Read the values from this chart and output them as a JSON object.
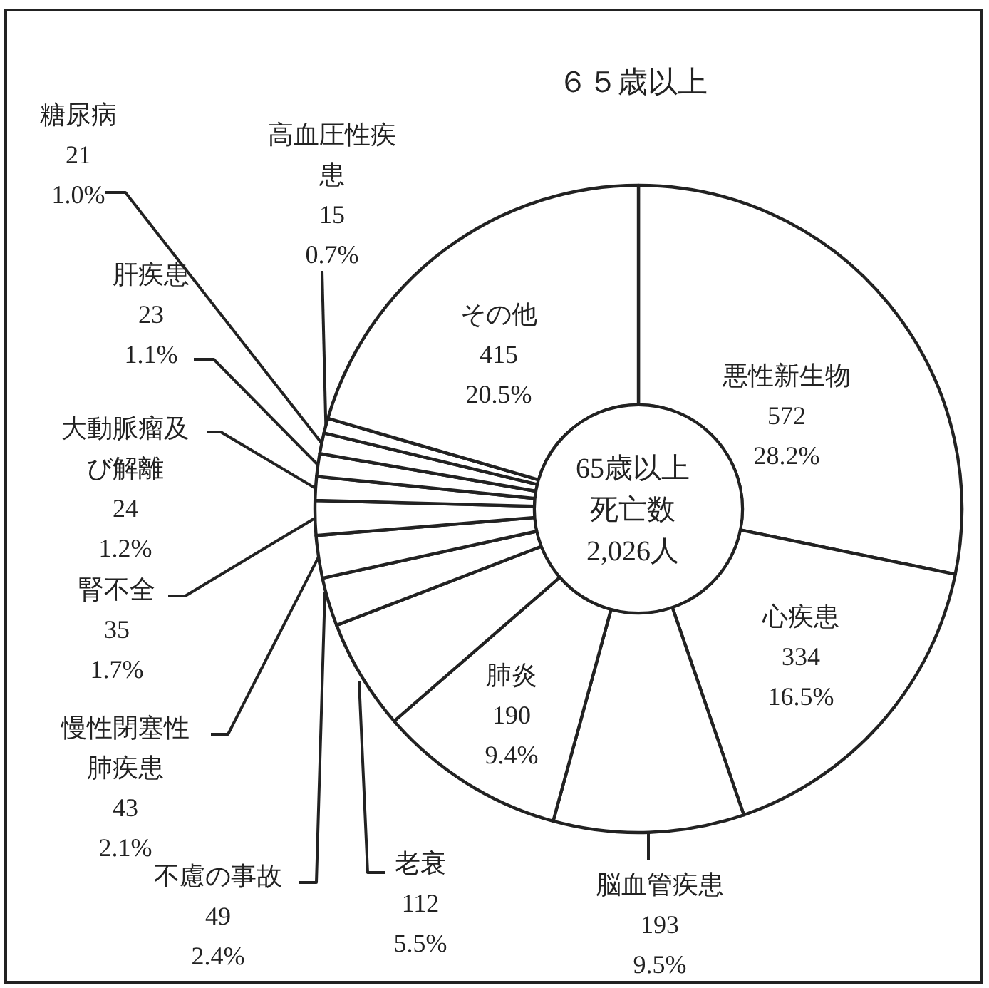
{
  "chart_data": {
    "type": "donut",
    "title": "６５歳以上",
    "categories": [
      "悪性新生物",
      "心疾患",
      "脳血管疾患",
      "肺炎",
      "老衰",
      "不慮の事故",
      "慢性閉塞性肺疾患",
      "腎不全",
      "大動脈瘤及び解離",
      "肝疾患",
      "糖尿病",
      "高血圧性疾患",
      "その他"
    ],
    "values": [
      572,
      334,
      193,
      190,
      112,
      49,
      43,
      35,
      24,
      23,
      21,
      15,
      415
    ],
    "colors": [
      "#ffffff",
      "#ffffff",
      "#ffffff",
      "#ffffff",
      "#ffffff",
      "#ffffff",
      "#ffffff",
      "#ffffff",
      "#ffffff",
      "#ffffff",
      "#ffffff",
      "#ffffff",
      "#ffffff"
    ],
    "value_labels": [
      "572 28.2%",
      "334 16.5%",
      "193 9.5%",
      "190 9.4%",
      "112 5.5%",
      "49 2.4%",
      "43 2.1%",
      "35 1.7%",
      "24 1.2%",
      "23 1.1%",
      "21 1.0%",
      "15 0.7%",
      "415 20.5%"
    ],
    "annotations": [
      "65歳以上",
      "死亡数",
      "2,026人"
    ]
  }
}
